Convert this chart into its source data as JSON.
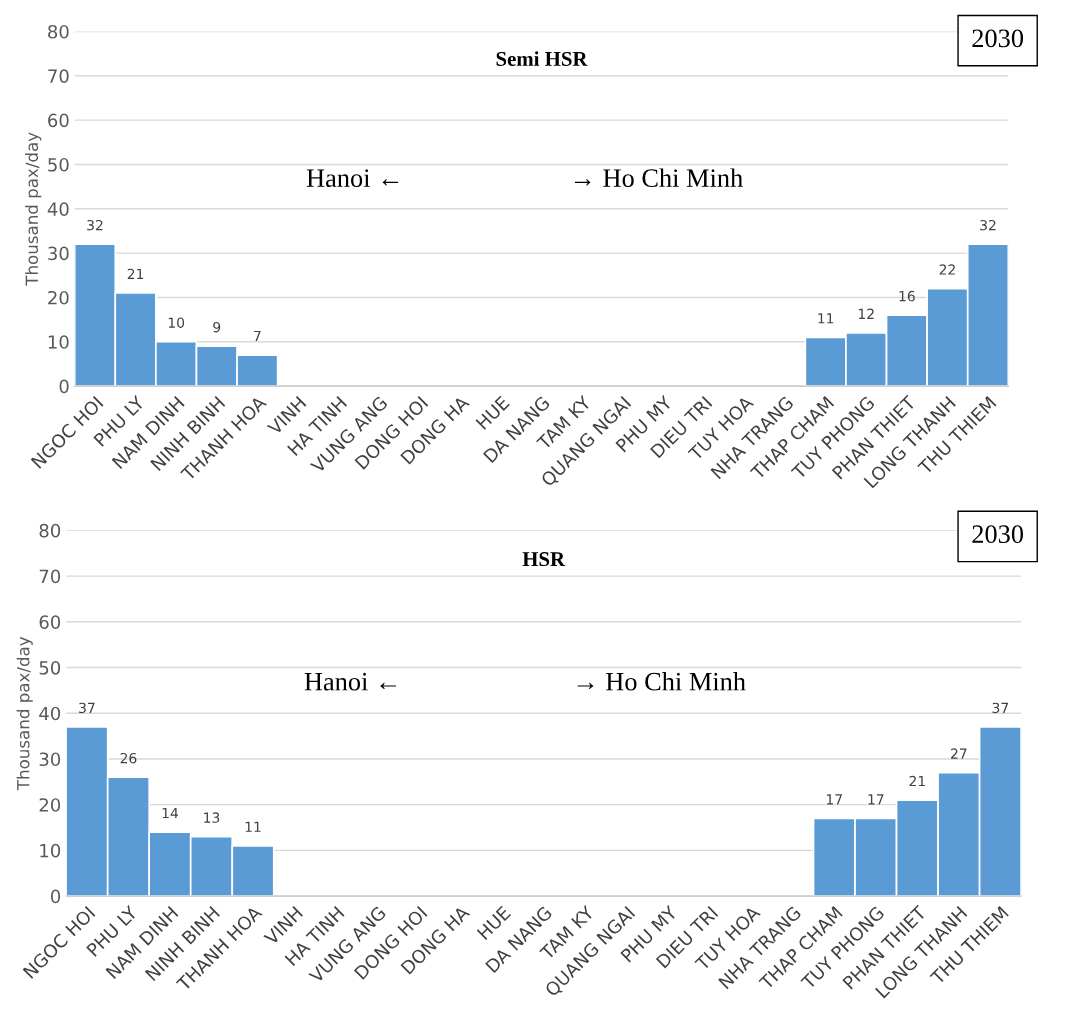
{
  "chart_data": [
    {
      "type": "bar",
      "title": "Semi HSR",
      "ylabel": "Thousand pax/day",
      "categories": [
        "NGOC HOI",
        "PHU LY",
        "NAM DINH",
        "NINH BINH",
        "THANH HOA",
        "VINH",
        "HA TINH",
        "VUNG ANG",
        "DONG HOI",
        "DONG HA",
        "HUE",
        "DA NANG",
        "TAM KY",
        "QUANG NGAI",
        "PHU MY",
        "DIEU TRI",
        "TUY HOA",
        "NHA TRANG",
        "THAP CHAM",
        "TUY PHONG",
        "PHAN THIET",
        "LONG THANH",
        "THU THIEM"
      ],
      "values": [
        32,
        21,
        10,
        9,
        7,
        null,
        null,
        null,
        null,
        null,
        null,
        null,
        null,
        null,
        null,
        null,
        null,
        null,
        11,
        12,
        16,
        22,
        32
      ],
      "color": "#5b9bd5",
      "ylim": [
        0,
        80
      ],
      "yticks": [
        0,
        10,
        20,
        30,
        40,
        50,
        60,
        70,
        80
      ],
      "grid": "y",
      "data_labels": true,
      "annotations": [
        "Hanoi ←",
        "→ Ho Chi Minh",
        "2030"
      ]
    },
    {
      "type": "bar",
      "title": "HSR",
      "ylabel": "Thousand pax/day",
      "categories": [
        "NGOC HOI",
        "PHU LY",
        "NAM DINH",
        "NINH BINH",
        "THANH HOA",
        "VINH",
        "HA TINH",
        "VUNG ANG",
        "DONG HOI",
        "DONG HA",
        "HUE",
        "DA NANG",
        "TAM KY",
        "QUANG NGAI",
        "PHU MY",
        "DIEU TRI",
        "TUY HOA",
        "NHA TRANG",
        "THAP CHAM",
        "TUY PHONG",
        "PHAN THIET",
        "LONG THANH",
        "THU THIEM"
      ],
      "values": [
        37,
        26,
        14,
        13,
        11,
        null,
        null,
        null,
        null,
        null,
        null,
        null,
        null,
        null,
        null,
        null,
        null,
        null,
        17,
        17,
        21,
        27,
        37
      ],
      "color": "#5b9bd5",
      "ylim": [
        0,
        80
      ],
      "yticks": [
        0,
        10,
        20,
        30,
        40,
        50,
        60,
        70,
        80
      ],
      "grid": "y",
      "data_labels": true,
      "annotations": [
        "Hanoi ←",
        "→ Ho Chi Minh",
        "2030"
      ]
    }
  ]
}
